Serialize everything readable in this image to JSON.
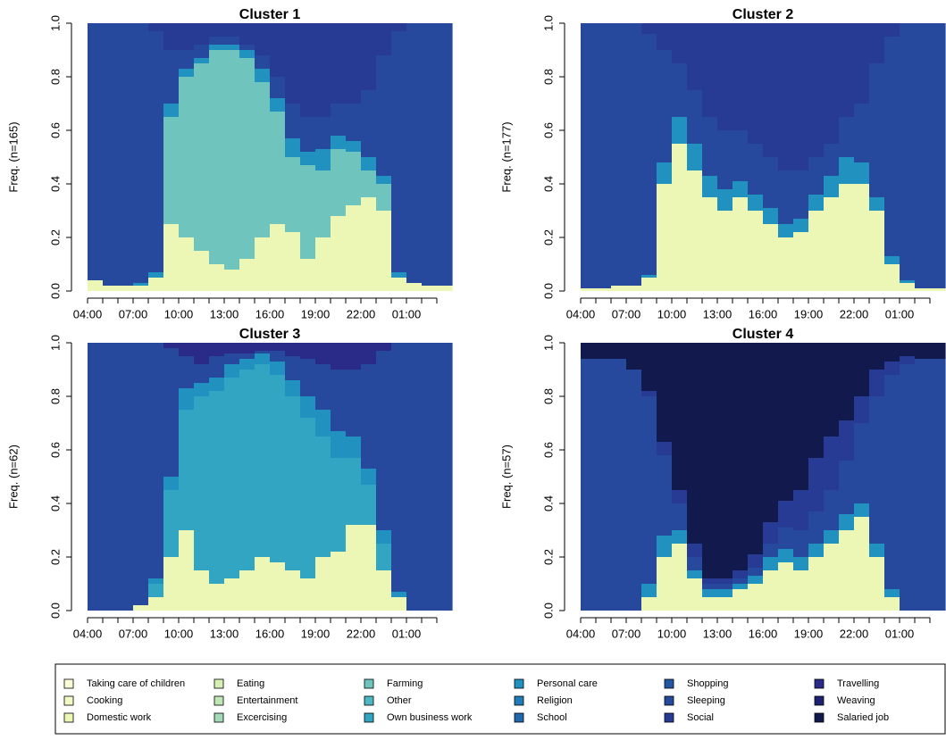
{
  "legend": {
    "items": [
      {
        "name": "Taking care of children",
        "color": "#fbfdd4"
      },
      {
        "name": "Cooking",
        "color": "#f3f9c2"
      },
      {
        "name": "Domestic work",
        "color": "#ecf7b6"
      },
      {
        "name": "Eating",
        "color": "#d7efb3"
      },
      {
        "name": "Entertainment",
        "color": "#c0e6b5"
      },
      {
        "name": "Excercising",
        "color": "#a3dab8"
      },
      {
        "name": "Farming",
        "color": "#6fc5bd"
      },
      {
        "name": "Other",
        "color": "#4db8c3"
      },
      {
        "name": "Own business work",
        "color": "#31a5c2"
      },
      {
        "name": "Personal care",
        "color": "#2191c0"
      },
      {
        "name": "Religion",
        "color": "#1f7db7"
      },
      {
        "name": "School",
        "color": "#2268ac"
      },
      {
        "name": "Shopping",
        "color": "#2457a3"
      },
      {
        "name": "Sleeping",
        "color": "#26499d"
      },
      {
        "name": "Social",
        "color": "#283b94"
      },
      {
        "name": "Travelling",
        "color": "#2a2a88"
      },
      {
        "name": "Weaving",
        "color": "#1f2270"
      },
      {
        "name": "Salaried job",
        "color": "#121a4d"
      }
    ]
  },
  "chart_data": [
    {
      "type": "stacked-area",
      "title": "Cluster 1",
      "y_label": "Freq. (n=165)",
      "x": [
        "04:00",
        null,
        null,
        "07:00",
        null,
        null,
        "10:00",
        null,
        null,
        "13:00",
        null,
        null,
        "16:00",
        null,
        null,
        "19:00",
        null,
        null,
        "22:00",
        null,
        null,
        "01:00",
        null,
        null
      ],
      "ylim": [
        0,
        1
      ],
      "yticks": [
        {
          "value": 0,
          "label": "0.0"
        },
        0.2,
        0.4,
        0.6,
        0.8,
        {
          "value": 1,
          "label": "1.0"
        }
      ],
      "series": [
        {
          "name": "Domestic work",
          "values": [
            0.04,
            0.02,
            0.02,
            0.02,
            0.05,
            0.25,
            0.2,
            0.15,
            0.1,
            0.08,
            0.12,
            0.2,
            0.25,
            0.22,
            0.12,
            0.2,
            0.28,
            0.32,
            0.35,
            0.3,
            0.05,
            0.03,
            0.02,
            0.02
          ]
        },
        {
          "name": "Farming",
          "values": [
            0,
            0,
            0,
            0,
            0,
            0.4,
            0.6,
            0.7,
            0.8,
            0.82,
            0.75,
            0.58,
            0.42,
            0.28,
            0.35,
            0.25,
            0.25,
            0.2,
            0.1,
            0.1,
            0,
            0,
            0,
            0
          ]
        },
        {
          "name": "Personal care",
          "values": [
            0,
            0,
            0,
            0.01,
            0.02,
            0.05,
            0.03,
            0.02,
            0.02,
            0.02,
            0.03,
            0.05,
            0.05,
            0.07,
            0.05,
            0.08,
            0.05,
            0.04,
            0.05,
            0.03,
            0.02,
            0,
            0,
            0
          ]
        },
        {
          "name": "Sleeping",
          "values": [
            0.96,
            0.98,
            0.98,
            0.97,
            0.9,
            0.2,
            0.07,
            0.05,
            0.03,
            0.03,
            0.02,
            0.05,
            0.08,
            0.13,
            0.13,
            0.12,
            0.12,
            0.14,
            0.25,
            0.45,
            0.9,
            0.97,
            0.98,
            0.98
          ]
        },
        {
          "name": "Social",
          "values": [
            0,
            0,
            0,
            0,
            0.03,
            0.1,
            0.1,
            0.08,
            0.05,
            0.05,
            0.08,
            0.12,
            0.2,
            0.3,
            0.35,
            0.35,
            0.3,
            0.3,
            0.25,
            0.12,
            0.03,
            0,
            0,
            0
          ]
        }
      ]
    },
    {
      "type": "stacked-area",
      "title": "Cluster 2",
      "y_label": "Freq. (n=177)",
      "x": [
        "04:00",
        null,
        null,
        "07:00",
        null,
        null,
        "10:00",
        null,
        null,
        "13:00",
        null,
        null,
        "16:00",
        null,
        null,
        "19:00",
        null,
        null,
        "22:00",
        null,
        null,
        "01:00",
        null,
        null
      ],
      "ylim": [
        0,
        1
      ],
      "yticks": [
        {
          "value": 0,
          "label": "0.0"
        },
        0.2,
        0.4,
        0.6,
        0.8,
        {
          "value": 1,
          "label": "1.0"
        }
      ],
      "series": [
        {
          "name": "Domestic work",
          "values": [
            0.01,
            0.01,
            0.02,
            0.02,
            0.05,
            0.4,
            0.55,
            0.45,
            0.35,
            0.3,
            0.35,
            0.3,
            0.25,
            0.2,
            0.22,
            0.3,
            0.35,
            0.4,
            0.4,
            0.3,
            0.1,
            0.03,
            0.01,
            0.01
          ]
        },
        {
          "name": "Personal care",
          "values": [
            0,
            0,
            0,
            0,
            0.01,
            0.08,
            0.1,
            0.1,
            0.08,
            0.08,
            0.06,
            0.06,
            0.06,
            0.05,
            0.05,
            0.06,
            0.08,
            0.1,
            0.08,
            0.05,
            0.03,
            0.01,
            0,
            0
          ]
        },
        {
          "name": "Sleeping",
          "values": [
            0.99,
            0.99,
            0.98,
            0.98,
            0.9,
            0.42,
            0.2,
            0.2,
            0.22,
            0.22,
            0.19,
            0.19,
            0.19,
            0.2,
            0.18,
            0.14,
            0.12,
            0.15,
            0.22,
            0.5,
            0.82,
            0.96,
            0.99,
            0.99
          ]
        },
        {
          "name": "Social",
          "values": [
            0,
            0,
            0,
            0,
            0.04,
            0.1,
            0.15,
            0.25,
            0.35,
            0.4,
            0.4,
            0.45,
            0.5,
            0.55,
            0.55,
            0.5,
            0.45,
            0.35,
            0.3,
            0.15,
            0.05,
            0,
            0,
            0
          ]
        }
      ]
    },
    {
      "type": "stacked-area",
      "title": "Cluster 3",
      "y_label": "Freq. (n=62)",
      "x": [
        "04:00",
        null,
        null,
        "07:00",
        null,
        null,
        "10:00",
        null,
        null,
        "13:00",
        null,
        null,
        "16:00",
        null,
        null,
        "19:00",
        null,
        null,
        "22:00",
        null,
        null,
        "01:00",
        null,
        null
      ],
      "ylim": [
        0,
        1
      ],
      "yticks": [
        {
          "value": 0,
          "label": "0.0"
        },
        0.2,
        0.4,
        0.6,
        0.8,
        {
          "value": 1,
          "label": "1.0"
        }
      ],
      "series": [
        {
          "name": "Domestic work",
          "values": [
            0,
            0,
            0,
            0.02,
            0.05,
            0.2,
            0.3,
            0.15,
            0.1,
            0.12,
            0.15,
            0.2,
            0.18,
            0.15,
            0.12,
            0.2,
            0.22,
            0.32,
            0.32,
            0.15,
            0.05,
            0,
            0,
            0
          ]
        },
        {
          "name": "Own business work",
          "values": [
            0,
            0,
            0,
            0,
            0.05,
            0.25,
            0.45,
            0.65,
            0.72,
            0.75,
            0.75,
            0.72,
            0.7,
            0.65,
            0.6,
            0.45,
            0.35,
            0.25,
            0.15,
            0.1,
            0,
            0,
            0,
            0
          ]
        },
        {
          "name": "Personal care",
          "values": [
            0,
            0,
            0,
            0,
            0.02,
            0.05,
            0.08,
            0.05,
            0.05,
            0.05,
            0.04,
            0.04,
            0.05,
            0.06,
            0.08,
            0.1,
            0.1,
            0.08,
            0.06,
            0.05,
            0.02,
            0,
            0,
            0
          ]
        },
        {
          "name": "Sleeping",
          "values": [
            1,
            1,
            1,
            0.98,
            0.88,
            0.48,
            0.12,
            0.07,
            0.08,
            0.04,
            0.02,
            0.01,
            0.04,
            0.09,
            0.14,
            0.17,
            0.23,
            0.25,
            0.39,
            0.67,
            0.93,
            1,
            1,
            1
          ]
        },
        {
          "name": "Travelling",
          "values": [
            0,
            0,
            0,
            0,
            0,
            0.02,
            0.05,
            0.08,
            0.05,
            0.04,
            0.04,
            0.03,
            0.03,
            0.05,
            0.06,
            0.08,
            0.1,
            0.1,
            0.08,
            0.03,
            0,
            0,
            0,
            0
          ]
        }
      ]
    },
    {
      "type": "stacked-area",
      "title": "Cluster 4",
      "y_label": "Freq. (n=57)",
      "x": [
        "04:00",
        null,
        null,
        "07:00",
        null,
        null,
        "10:00",
        null,
        null,
        "13:00",
        null,
        null,
        "16:00",
        null,
        null,
        "19:00",
        null,
        null,
        "22:00",
        null,
        null,
        "01:00",
        null,
        null
      ],
      "ylim": [
        0,
        1
      ],
      "yticks": [
        {
          "value": 0,
          "label": "0.0"
        },
        0.2,
        0.4,
        0.6,
        0.8,
        {
          "value": 1,
          "label": "1.0"
        }
      ],
      "series": [
        {
          "name": "Domestic work",
          "values": [
            0,
            0,
            0,
            0,
            0.05,
            0.2,
            0.25,
            0.12,
            0.05,
            0.05,
            0.08,
            0.1,
            0.15,
            0.18,
            0.15,
            0.2,
            0.25,
            0.3,
            0.35,
            0.2,
            0.05,
            0,
            0,
            0
          ]
        },
        {
          "name": "Personal care",
          "values": [
            0,
            0,
            0,
            0,
            0.05,
            0.08,
            0.05,
            0.03,
            0.03,
            0.03,
            0.02,
            0.03,
            0.05,
            0.05,
            0.05,
            0.05,
            0.05,
            0.06,
            0.05,
            0.05,
            0.03,
            0,
            0,
            0
          ]
        },
        {
          "name": "Sleeping",
          "values": [
            0.94,
            0.94,
            0.94,
            0.9,
            0.7,
            0.3,
            0.1,
            0.05,
            0.02,
            0.02,
            0.02,
            0.03,
            0.05,
            0.08,
            0.1,
            0.12,
            0.15,
            0.2,
            0.3,
            0.55,
            0.8,
            0.92,
            0.94,
            0.94
          ]
        },
        {
          "name": "Social",
          "values": [
            0,
            0,
            0,
            0,
            0.02,
            0.05,
            0.05,
            0.05,
            0.02,
            0.02,
            0.03,
            0.05,
            0.08,
            0.1,
            0.15,
            0.2,
            0.2,
            0.15,
            0.1,
            0.1,
            0.05,
            0.03,
            0,
            0
          ]
        },
        {
          "name": "Salaried job",
          "values": [
            0.06,
            0.06,
            0.06,
            0.1,
            0.18,
            0.37,
            0.55,
            0.75,
            0.88,
            0.88,
            0.85,
            0.79,
            0.67,
            0.59,
            0.55,
            0.43,
            0.35,
            0.29,
            0.2,
            0.1,
            0.07,
            0.05,
            0.06,
            0.06
          ]
        }
      ]
    }
  ]
}
